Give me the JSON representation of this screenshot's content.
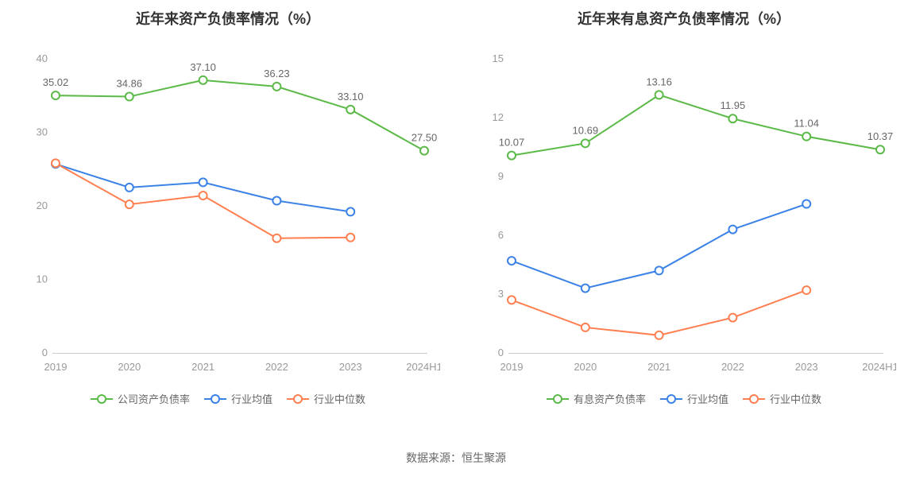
{
  "colors": {
    "series_green": "#5bba47",
    "series_blue": "#3b82e6",
    "series_orange": "#ff7f50",
    "axis_text": "#999999",
    "axis_line": "#cccccc",
    "title_text": "#333333",
    "label_text": "#666666",
    "marker_fill": "#ffffff",
    "background": "#ffffff"
  },
  "typography": {
    "title_fontsize": 18,
    "title_fontweight": "bold",
    "axis_fontsize": 13,
    "legend_fontsize": 13,
    "datalabel_fontsize": 13,
    "footer_fontsize": 14
  },
  "line_style": {
    "line_width": 2,
    "marker_radius": 5,
    "marker_stroke_width": 2
  },
  "left_chart": {
    "type": "line",
    "title": "近年来资产负债率情况（%）",
    "categories": [
      "2019",
      "2020",
      "2021",
      "2022",
      "2023",
      "2024H1"
    ],
    "ylim": [
      0,
      40
    ],
    "ytick_step": 10,
    "show_data_labels_on": "company",
    "series": [
      {
        "key": "company",
        "name": "公司资产负债率",
        "color_ref": "series_green",
        "values": [
          35.02,
          34.86,
          37.1,
          36.23,
          33.1,
          27.5
        ],
        "labels": [
          "35.02",
          "34.86",
          "37.10",
          "36.23",
          "33.10",
          "27.50"
        ]
      },
      {
        "key": "industry_avg",
        "name": "行业均值",
        "color_ref": "series_blue",
        "values": [
          25.7,
          22.5,
          23.2,
          20.7,
          19.2,
          null
        ]
      },
      {
        "key": "industry_median",
        "name": "行业中位数",
        "color_ref": "series_orange",
        "values": [
          25.8,
          20.2,
          21.4,
          15.6,
          15.7,
          null
        ]
      }
    ]
  },
  "right_chart": {
    "type": "line",
    "title": "近年来有息资产负债率情况（%）",
    "categories": [
      "2019",
      "2020",
      "2021",
      "2022",
      "2023",
      "2024H1"
    ],
    "ylim": [
      0,
      15
    ],
    "ytick_step": 3,
    "show_data_labels_on": "company_ib",
    "series": [
      {
        "key": "company_ib",
        "name": "有息资产负债率",
        "color_ref": "series_green",
        "values": [
          10.07,
          10.69,
          13.16,
          11.95,
          11.04,
          10.37
        ],
        "labels": [
          "10.07",
          "10.69",
          "13.16",
          "11.95",
          "11.04",
          "10.37"
        ]
      },
      {
        "key": "industry_avg",
        "name": "行业均值",
        "color_ref": "series_blue",
        "values": [
          4.7,
          3.3,
          4.2,
          6.3,
          7.6,
          null
        ]
      },
      {
        "key": "industry_median",
        "name": "行业中位数",
        "color_ref": "series_orange",
        "values": [
          2.7,
          1.3,
          0.9,
          1.8,
          3.2,
          null
        ]
      }
    ]
  },
  "footer": {
    "source_prefix": "数据来源：",
    "source_name": "恒生聚源"
  }
}
